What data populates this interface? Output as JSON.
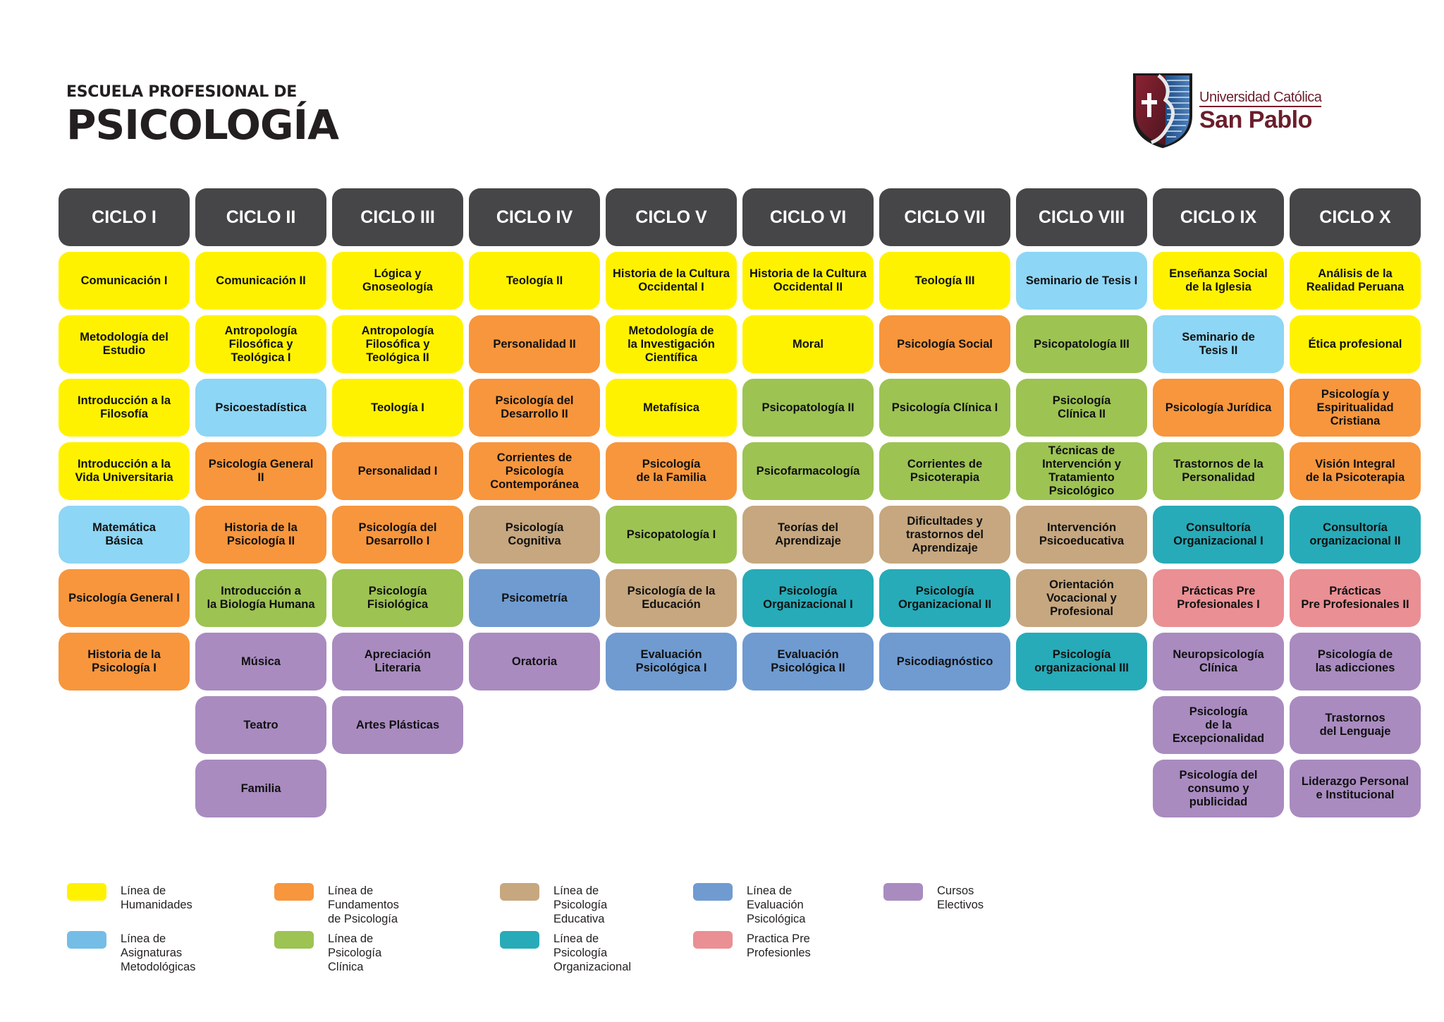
{
  "header": {
    "subtitle": "ESCUELA PROFESIONAL DE",
    "title": "PSICOLOGÍA"
  },
  "logo": {
    "line1": "Universidad Católica",
    "line2": "San Pablo",
    "colors": {
      "maroon": "#6b1e2b",
      "blue": "#2d5f9a"
    }
  },
  "colors": {
    "header_bg": "#464648",
    "humanidades": "#fff200",
    "fundamentos": "#f7963d",
    "metodologicas": "#8dd6f5",
    "clinica": "#9dc353",
    "educativa": "#c6a77f",
    "evaluacion": "#6f9bd1",
    "organizacional": "#27abb8",
    "practica": "#ea8f94",
    "electivos": "#a98bc0"
  },
  "cycles": [
    {
      "label": "CICLO I",
      "courses": [
        {
          "name": "Comunicación I",
          "line": "hum"
        },
        {
          "name": "Metodología del\nEstudio",
          "line": "hum"
        },
        {
          "name": "Introducción a la\nFilosofía",
          "line": "hum"
        },
        {
          "name": "Introducción a la\nVida Universitaria",
          "line": "hum"
        },
        {
          "name": "Matemática\nBásica",
          "line": "met"
        },
        {
          "name": "Psicología General I",
          "line": "fun"
        },
        {
          "name": "Historia de la\nPsicología I",
          "line": "fun"
        }
      ]
    },
    {
      "label": "CICLO II",
      "courses": [
        {
          "name": "Comunicación II",
          "line": "hum"
        },
        {
          "name": "Antropología\nFilosófica y\nTeológica I",
          "line": "hum"
        },
        {
          "name": "Psicoestadística",
          "line": "met"
        },
        {
          "name": "Psicología General\nII",
          "line": "fun"
        },
        {
          "name": "Historia de la\nPsicología II",
          "line": "fun"
        },
        {
          "name": "Introducción a\nla Biología Humana",
          "line": "cli"
        },
        {
          "name": "Música",
          "line": "ele"
        },
        {
          "name": "Teatro",
          "line": "ele"
        },
        {
          "name": "Familia",
          "line": "ele"
        }
      ]
    },
    {
      "label": "CICLO III",
      "courses": [
        {
          "name": "Lógica y\nGnoseología",
          "line": "hum"
        },
        {
          "name": "Antropología\nFilosófica y\nTeológica II",
          "line": "hum"
        },
        {
          "name": "Teología I",
          "line": "hum"
        },
        {
          "name": "Personalidad I",
          "line": "fun"
        },
        {
          "name": "Psicología del\nDesarrollo I",
          "line": "fun"
        },
        {
          "name": "Psicología\nFisiológica",
          "line": "cli"
        },
        {
          "name": "Apreciación\nLiteraria",
          "line": "ele"
        },
        {
          "name": "Artes Plásticas",
          "line": "ele"
        }
      ]
    },
    {
      "label": "CICLO IV",
      "courses": [
        {
          "name": "Teología II",
          "line": "hum"
        },
        {
          "name": "Personalidad II",
          "line": "fun"
        },
        {
          "name": "Psicología del\nDesarrollo II",
          "line": "fun"
        },
        {
          "name": "Corrientes de\nPsicología\nContemporánea",
          "line": "fun"
        },
        {
          "name": "Psicología\nCognitiva",
          "line": "edu"
        },
        {
          "name": "Psicometría",
          "line": "eva"
        },
        {
          "name": "Oratoria",
          "line": "ele"
        }
      ]
    },
    {
      "label": "CICLO V",
      "courses": [
        {
          "name": "Historia de la Cultura\nOccidental I",
          "line": "hum"
        },
        {
          "name": "Metodología de\nla Investigación\nCientífica",
          "line": "hum"
        },
        {
          "name": "Metafísica",
          "line": "hum"
        },
        {
          "name": "Psicología\nde la Familia",
          "line": "fun"
        },
        {
          "name": "Psicopatología I",
          "line": "cli"
        },
        {
          "name": "Psicología de la\nEducación",
          "line": "edu"
        },
        {
          "name": "Evaluación\nPsicológica I",
          "line": "eva"
        }
      ]
    },
    {
      "label": "CICLO VI",
      "courses": [
        {
          "name": "Historia de la Cultura\nOccidental II",
          "line": "hum"
        },
        {
          "name": "Moral",
          "line": "hum"
        },
        {
          "name": "Psicopatología II",
          "line": "cli"
        },
        {
          "name": "Psicofarmacología",
          "line": "cli"
        },
        {
          "name": "Teorías del\nAprendizaje",
          "line": "edu"
        },
        {
          "name": "Psicología\nOrganizacional I",
          "line": "org"
        },
        {
          "name": "Evaluación\nPsicológica II",
          "line": "eva"
        }
      ]
    },
    {
      "label": "CICLO VII",
      "courses": [
        {
          "name": "Teología III",
          "line": "hum"
        },
        {
          "name": "Psicología Social",
          "line": "fun"
        },
        {
          "name": "Psicología Clínica I",
          "line": "cli"
        },
        {
          "name": "Corrientes de\nPsicoterapia",
          "line": "cli"
        },
        {
          "name": "Dificultades y\ntrastornos del\nAprendizaje",
          "line": "edu"
        },
        {
          "name": "Psicología\nOrganizacional II",
          "line": "org"
        },
        {
          "name": "Psicodiagnóstico",
          "line": "eva"
        }
      ]
    },
    {
      "label": "CICLO VIII",
      "courses": [
        {
          "name": "Seminario de Tesis I",
          "line": "met"
        },
        {
          "name": "Psicopatología III",
          "line": "cli"
        },
        {
          "name": "Psicología\nClínica II",
          "line": "cli"
        },
        {
          "name": "Técnicas de\nIntervención y\nTratamiento\nPsicológico",
          "line": "cli"
        },
        {
          "name": "Intervención\nPsicoeducativa",
          "line": "edu"
        },
        {
          "name": "Orientación\nVocacional y\nProfesional",
          "line": "edu"
        },
        {
          "name": "Psicología\norganizacional III",
          "line": "org"
        }
      ]
    },
    {
      "label": "CICLO IX",
      "courses": [
        {
          "name": "Enseñanza Social\nde la Iglesia",
          "line": "hum"
        },
        {
          "name": "Seminario de\nTesis II",
          "line": "met"
        },
        {
          "name": "Psicología Jurídica",
          "line": "fun"
        },
        {
          "name": "Trastornos de la\nPersonalidad",
          "line": "cli"
        },
        {
          "name": "Consultoría\nOrganizacional I",
          "line": "org"
        },
        {
          "name": "Prácticas Pre\nProfesionales I",
          "line": "pra"
        },
        {
          "name": "Neuropsicología\nClínica",
          "line": "ele"
        },
        {
          "name": "Psicología\nde la\nExcepcionalidad",
          "line": "ele"
        },
        {
          "name": "Psicología del\nconsumo y\npublicidad",
          "line": "ele"
        }
      ]
    },
    {
      "label": "CICLO X",
      "courses": [
        {
          "name": "Análisis de la\nRealidad Peruana",
          "line": "hum"
        },
        {
          "name": "Ética profesional",
          "line": "hum"
        },
        {
          "name": "Psicología y\nEspiritualidad\nCristiana",
          "line": "fun"
        },
        {
          "name": "Visión Integral\nde la Psicoterapia",
          "line": "fun"
        },
        {
          "name": "Consultoría\norganizacional II",
          "line": "org"
        },
        {
          "name": "Prácticas\nPre Profesionales II",
          "line": "pra"
        },
        {
          "name": "Psicología de\nlas adicciones",
          "line": "ele"
        },
        {
          "name": "Trastornos\ndel Lenguaje",
          "line": "ele"
        },
        {
          "name": "Liderazgo Personal\ne  Institucional",
          "line": "ele"
        }
      ]
    }
  ],
  "legend": [
    {
      "line": "hum",
      "label": "Línea de Humanidades",
      "color": "#fff200"
    },
    {
      "line": "fun",
      "label": "Línea de Fundamentos\nde Psicología",
      "color": "#f7963d"
    },
    {
      "line": "edu",
      "label": "Línea de Psicología\nEducativa",
      "color": "#c6a77f"
    },
    {
      "line": "eva",
      "label": "Línea de Evaluación\nPsicológica",
      "color": "#6f9bd1"
    },
    {
      "line": "ele",
      "label": "Cursos Electivos",
      "color": "#a98bc0"
    },
    {
      "line": "met",
      "label": "Línea de Asignaturas\nMetodológicas",
      "color": "#74bde6"
    },
    {
      "line": "cli",
      "label": "Línea de Psicología Clínica",
      "color": "#9dc353"
    },
    {
      "line": "org",
      "label": "Línea de Psicología\nOrganizacional",
      "color": "#27abb8"
    },
    {
      "line": "pra",
      "label": " Practica Pre\nProfesionles",
      "color": "#ea8f94"
    }
  ]
}
